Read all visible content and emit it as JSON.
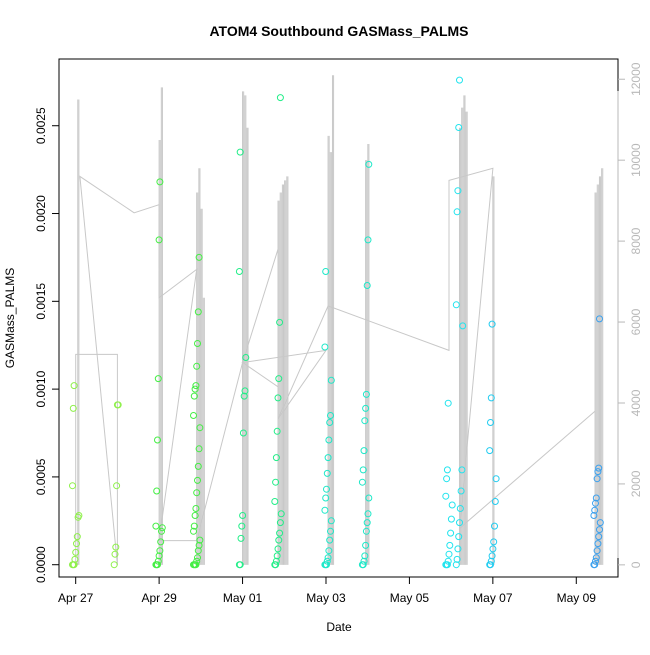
{
  "chart_data": {
    "type": "scatter",
    "title": "ATOM4 Southbound GASMass_PALMS",
    "xlabel": "Date",
    "ylabel": "GASMass_PALMS",
    "x_ticks": [
      "Apr 27",
      "Apr 29",
      "May 01",
      "May 03",
      "May 05",
      "May 07",
      "May 09"
    ],
    "x_tick_days": [
      0,
      2,
      4,
      6,
      8,
      10,
      12
    ],
    "xlim_days": [
      -0.4,
      13.0
    ],
    "y_ticks": [
      "0.0000",
      "0.0005",
      "0.0010",
      "0.0015",
      "0.0020",
      "0.0025"
    ],
    "y_tick_values": [
      0.0,
      0.0005,
      0.001,
      0.0015,
      0.002,
      0.0025
    ],
    "ylim": [
      -7e-05,
      0.00288
    ],
    "y2_ticks": [
      "0",
      "2000",
      "4000",
      "6000",
      "8000",
      "10000",
      "12000"
    ],
    "y2_tick_values": [
      0,
      2000,
      4000,
      6000,
      8000,
      10000,
      12000
    ],
    "y2lim": [
      -300,
      12500
    ],
    "grid": false,
    "point_colors": [
      "#8ef04a",
      "#44ee44",
      "#22ee88",
      "#1de8c8",
      "#22e4ee",
      "#22ccf0",
      "#3aa0ee"
    ],
    "line_color": "#c8c8c8",
    "points": [
      {
        "day": 0.0,
        "values": [
          0.0,
          0.0,
          0.0,
          3e-05,
          7e-05,
          0.00012,
          0.00016,
          0.00027,
          0.00028,
          0.00045,
          0.00089,
          0.00102
        ]
      },
      {
        "day": 1.0,
        "values": [
          0.0,
          6e-05,
          0.0001,
          0.00045,
          0.00091,
          0.00091
        ]
      },
      {
        "day": 2.0,
        "values": [
          0.0,
          0.0,
          0.0,
          2e-05,
          5e-05,
          8e-05,
          0.00013,
          0.00019,
          0.00021,
          0.00022,
          0.00042,
          0.00071,
          0.00106,
          0.00185,
          0.00218
        ]
      },
      {
        "day": 2.9,
        "values": [
          0.0,
          0.0,
          0.0,
          0.0,
          2e-05,
          4e-05,
          8e-05,
          0.00011,
          0.00014,
          0.00019,
          0.00022,
          0.00028,
          0.00032,
          0.00041,
          0.00048,
          0.00056,
          0.00066,
          0.00078,
          0.00085,
          0.00096,
          0.001,
          0.00102,
          0.00113,
          0.00126,
          0.00144,
          0.00175
        ]
      },
      {
        "day": 4.0,
        "values": [
          0.0,
          0.0,
          0.00015,
          0.00022,
          0.00028,
          0.00075,
          0.00096,
          0.00099,
          0.00118,
          0.00167,
          0.00235
        ]
      },
      {
        "day": 4.85,
        "values": [
          0.0,
          0.0,
          2e-05,
          5e-05,
          9e-05,
          0.00014,
          0.00018,
          0.00024,
          0.00029,
          0.00036,
          0.00047,
          0.00061,
          0.00076,
          0.00095,
          0.00106,
          0.00138,
          0.00266
        ]
      },
      {
        "day": 6.05,
        "values": [
          0.0,
          0.0,
          0.0,
          2e-05,
          4e-05,
          8e-05,
          0.00014,
          0.00019,
          0.00025,
          0.00031,
          0.00038,
          0.00043,
          0.00052,
          0.00061,
          0.00071,
          0.00081,
          0.00085,
          0.00105,
          0.00124,
          0.00167
        ]
      },
      {
        "day": 6.95,
        "values": [
          0.0,
          0.0,
          2e-05,
          5e-05,
          0.00011,
          0.00019,
          0.00024,
          0.00029,
          0.00038,
          0.00047,
          0.00054,
          0.00065,
          0.00082,
          0.00089,
          0.00097,
          0.00159,
          0.00185,
          0.00228
        ]
      },
      {
        "day": 8.95,
        "values": [
          0.0,
          0.0,
          0.0,
          2e-05,
          6e-05,
          0.00011,
          0.00018,
          0.00026,
          0.00034,
          0.00039,
          0.00049,
          0.00054,
          0.00092
        ]
      },
      {
        "day": 9.2,
        "values": [
          0.0,
          3e-05,
          9e-05,
          0.00016,
          0.00024,
          0.00032,
          0.00042,
          0.00054,
          0.00136,
          0.00148,
          0.00201,
          0.00213,
          0.00249,
          0.00276
        ]
      },
      {
        "day": 10.0,
        "values": [
          0.0,
          0.0,
          2e-05,
          5e-05,
          9e-05,
          0.00013,
          0.00022,
          0.00036,
          0.00049,
          0.00065,
          0.00081,
          0.00095,
          0.00137
        ]
      },
      {
        "day": 12.5,
        "values": [
          0.0,
          0.0,
          2e-05,
          4e-05,
          8e-05,
          0.00012,
          0.00016,
          0.0002,
          0.00024,
          0.00028,
          0.00031,
          0.00035,
          0.00038,
          0.00049,
          0.00053,
          0.00055,
          0.0014
        ]
      }
    ],
    "altitude_profile": {
      "comment": "",
      "spikes": [
        {
          "day": 0.05,
          "peaks": [
            11500
          ]
        },
        {
          "day": 2.0,
          "peaks": [
            10500,
            11800
          ]
        },
        {
          "day": 2.9,
          "peaks": [
            9200,
            9800,
            8800,
            6600
          ]
        },
        {
          "day": 4.0,
          "peaks": [
            11700,
            11600,
            10800
          ]
        },
        {
          "day": 4.85,
          "peaks": [
            9000,
            9200,
            9400,
            9500,
            9600
          ]
        },
        {
          "day": 6.05,
          "peaks": [
            10600,
            10200,
            12100
          ]
        },
        {
          "day": 6.95,
          "peaks": [
            10000,
            10400
          ]
        },
        {
          "day": 9.2,
          "peaks": [
            10800,
            11300,
            11600,
            11200
          ]
        },
        {
          "day": 10.0,
          "peaks": [
            9600
          ]
        },
        {
          "day": 12.45,
          "peaks": [
            9200,
            9400,
            9600,
            9800
          ]
        }
      ],
      "path": [
        [
          0.0,
          0
        ],
        [
          0.0,
          5200
        ],
        [
          1.0,
          5200
        ],
        [
          1.0,
          0
        ],
        [
          0.1,
          9600
        ],
        [
          1.4,
          8700
        ],
        [
          2.0,
          8900
        ],
        [
          2.0,
          6600
        ],
        [
          2.9,
          7300
        ],
        [
          2.0,
          600
        ],
        [
          2.9,
          600
        ],
        [
          4.0,
          5000
        ],
        [
          4.85,
          7800
        ],
        [
          4.85,
          4400
        ],
        [
          4.0,
          5000
        ],
        [
          6.0,
          5300
        ],
        [
          4.85,
          3600
        ],
        [
          6.05,
          6400
        ],
        [
          8.95,
          5300
        ],
        [
          8.95,
          9500
        ],
        [
          10.0,
          9800
        ],
        [
          9.2,
          900
        ],
        [
          12.45,
          3800
        ]
      ]
    }
  }
}
